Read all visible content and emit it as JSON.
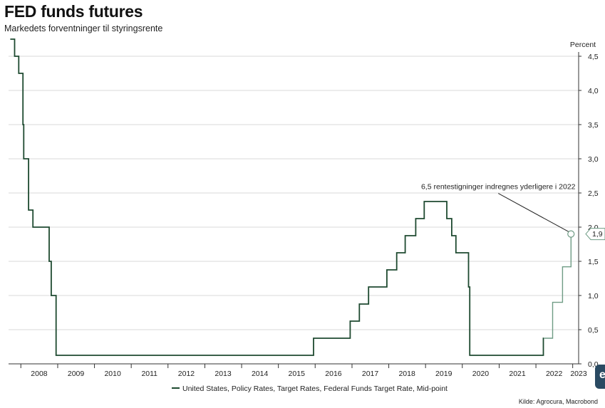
{
  "header": {
    "title": "FED funds futures",
    "subtitle": "Markedets forventninger til styringsrente"
  },
  "source": "Kilde: Agrocura, Macrobond",
  "colors": {
    "actual": "#1e4a30",
    "forecast": "#6f9c85",
    "grid": "#d9d9d9",
    "axis": "#333333"
  },
  "chart_data": {
    "type": "line",
    "title": "FED funds futures",
    "subtitle": "Markedets forventninger til styringsrente",
    "ylabel": "Percent",
    "xlabel": "",
    "ylim": [
      0,
      4.5
    ],
    "xlim": [
      "2007-09-01",
      "2023-03-01"
    ],
    "y_ticks": [
      "0,0",
      "0,5",
      "1,0",
      "1,5",
      "2,0",
      "2,5",
      "3,0",
      "3,5",
      "4,0",
      "4,5"
    ],
    "y_tick_values": [
      0,
      0.5,
      1,
      1.5,
      2,
      2.5,
      3,
      3.5,
      4,
      4.5
    ],
    "x_ticks": [
      "2008",
      "2009",
      "2010",
      "2011",
      "2012",
      "2013",
      "2014",
      "2015",
      "2016",
      "2017",
      "2018",
      "2019",
      "2020",
      "2021",
      "2022",
      "2023"
    ],
    "grid": true,
    "legend_position": "bottom-center",
    "step": true,
    "series": [
      {
        "name": "United States, Policy Rates, Target Rates, Federal Funds Target Rate, Mid-point",
        "color": "#1e4a30",
        "points": [
          [
            "2007-09-18",
            4.75
          ],
          [
            "2007-10-31",
            4.5
          ],
          [
            "2007-12-11",
            4.25
          ],
          [
            "2008-01-22",
            3.5
          ],
          [
            "2008-01-30",
            3.0
          ],
          [
            "2008-03-18",
            2.25
          ],
          [
            "2008-04-30",
            2.0
          ],
          [
            "2008-10-08",
            1.5
          ],
          [
            "2008-10-29",
            1.0
          ],
          [
            "2008-12-16",
            0.125
          ],
          [
            "2015-12-16",
            0.375
          ],
          [
            "2016-12-14",
            0.625
          ],
          [
            "2017-03-15",
            0.875
          ],
          [
            "2017-06-14",
            1.125
          ],
          [
            "2017-12-13",
            1.375
          ],
          [
            "2018-03-21",
            1.625
          ],
          [
            "2018-06-13",
            1.875
          ],
          [
            "2018-09-26",
            2.125
          ],
          [
            "2018-12-19",
            2.375
          ],
          [
            "2019-07-31",
            2.125
          ],
          [
            "2019-09-18",
            1.875
          ],
          [
            "2019-10-30",
            1.625
          ],
          [
            "2020-03-03",
            1.125
          ],
          [
            "2020-03-15",
            0.125
          ],
          [
            "2022-03-16",
            0.375
          ],
          [
            "2022-03-20",
            0.375
          ]
        ]
      },
      {
        "name": "",
        "color": "#6f9c85",
        "points": [
          [
            "2022-03-20",
            0.375
          ],
          [
            "2022-05-04",
            0.375
          ],
          [
            "2022-06-15",
            0.375
          ],
          [
            "2022-06-16",
            0.9
          ],
          [
            "2022-09-21",
            0.9
          ],
          [
            "2022-09-22",
            1.42
          ],
          [
            "2022-12-14",
            1.42
          ],
          [
            "2022-12-15",
            1.9
          ]
        ]
      }
    ],
    "annotations": [
      {
        "text": "6,5 rentestigninger indregnes yderligere i 2022",
        "x": "2022-12-15",
        "y": 1.9
      }
    ],
    "end_label": "1,9"
  }
}
